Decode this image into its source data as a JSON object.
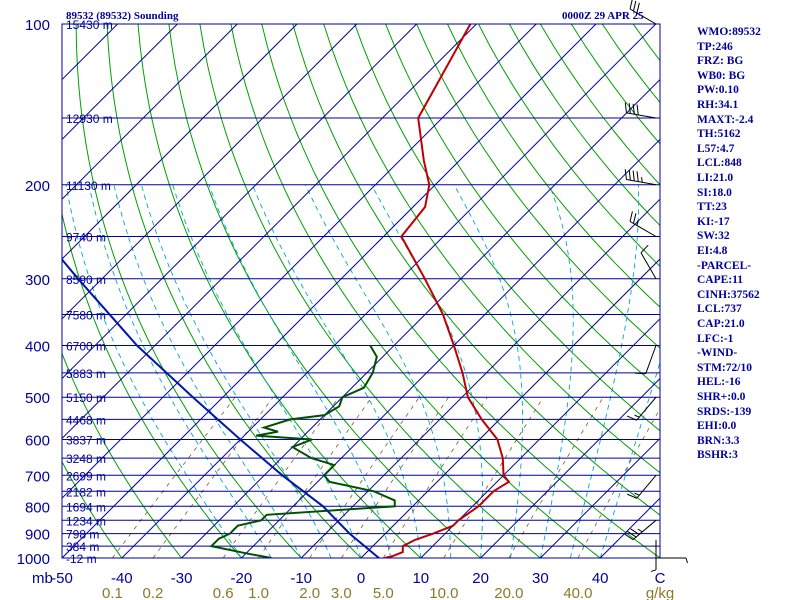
{
  "header": {
    "station": "89532 (89532) Sounding",
    "time": "0000Z 29 APR 25"
  },
  "stats": [
    "WMO:89532",
    "TP:246",
    "FRZ: BG",
    "WB0: BG",
    "PW:0.10",
    "RH:34.1",
    "MAXT:-2.4",
    "TH:5162",
    "L57:4.7",
    "LCL:848",
    "LI:21.0",
    "SI:18.0",
    "TT:23",
    "KI:-17",
    "SW:32",
    "EI:4.8",
    "-PARCEL-",
    "CAPE:11",
    "CINH:37562",
    "LCL:737",
    "CAP:21.0",
    "LFC:-1",
    "-WIND-",
    "STM:72/10",
    "HEL:-16",
    "SHR+:0.0",
    "SRDS:-139",
    "EHI:0.0",
    "BRN:3.3",
    "BSHR:3"
  ],
  "colors": {
    "isobar": "#00009c",
    "isotherm": "#00009c",
    "dry_adiabat": "#00a000",
    "moist_adiabat": "#00a8c8",
    "mixing_ratio": "#806020",
    "temperature": "#c00000",
    "dewpoint": "#005000",
    "parcel": "#0018a8",
    "axis_text": "#00009c",
    "mixing_text": "#8a7a28"
  },
  "chart_data": {
    "type": "skew-t log-p sounding",
    "x_axis": {
      "label": "mb",
      "ticks": [
        -50,
        -40,
        -30,
        -20,
        -10,
        0,
        10,
        20,
        30,
        40
      ],
      "last_tick": "C",
      "range": [
        -50,
        50
      ]
    },
    "y_axis": {
      "ticks": [
        100,
        200,
        300,
        400,
        500,
        600,
        700,
        800,
        900,
        1000
      ],
      "range": [
        1000,
        100
      ],
      "scale": "log"
    },
    "mixing_ratio_axis": {
      "ticks": [
        "0.1",
        "0.2",
        "0.6",
        "1.0",
        "2.0",
        "3.0",
        "5.0",
        "10.0",
        "20.0",
        "40.0"
      ],
      "unit": "g/kg"
    },
    "heights": [
      {
        "p": 100,
        "label": "15430 m"
      },
      {
        "p": 150,
        "label": "12930 m"
      },
      {
        "p": 200,
        "label": "11130 m"
      },
      {
        "p": 250,
        "label": "9740 m"
      },
      {
        "p": 300,
        "label": "8590 m"
      },
      {
        "p": 350,
        "label": "7580 m"
      },
      {
        "p": 400,
        "label": "6700 m"
      },
      {
        "p": 450,
        "label": "5883 m"
      },
      {
        "p": 500,
        "label": "5150 m"
      },
      {
        "p": 550,
        "label": "4468 m"
      },
      {
        "p": 600,
        "label": "3837 m"
      },
      {
        "p": 650,
        "label": "3248 m"
      },
      {
        "p": 700,
        "label": "2699 m"
      },
      {
        "p": 750,
        "label": "2182 m"
      },
      {
        "p": 800,
        "label": "1694 m"
      },
      {
        "p": 850,
        "label": "1234 m"
      },
      {
        "p": 900,
        "label": "798 m"
      },
      {
        "p": 950,
        "label": "384 m"
      },
      {
        "p": 1000,
        "label": "-12 m"
      }
    ],
    "series": [
      {
        "name": "temperature",
        "points": [
          [
            1000,
            4
          ],
          [
            992,
            5
          ],
          [
            975,
            6
          ],
          [
            950,
            5
          ],
          [
            925,
            6
          ],
          [
            900,
            8
          ],
          [
            870,
            10
          ],
          [
            850,
            10
          ],
          [
            800,
            11
          ],
          [
            780,
            11
          ],
          [
            750,
            11
          ],
          [
            720,
            12
          ],
          [
            700,
            10
          ],
          [
            650,
            7
          ],
          [
            600,
            3
          ],
          [
            550,
            -3
          ],
          [
            500,
            -9
          ],
          [
            450,
            -14
          ],
          [
            400,
            -20
          ],
          [
            350,
            -27
          ],
          [
            300,
            -36
          ],
          [
            250,
            -47
          ],
          [
            220,
            -48
          ],
          [
            200,
            -51
          ],
          [
            180,
            -56
          ],
          [
            150,
            -64
          ],
          [
            100,
            -71
          ]
        ]
      },
      {
        "name": "dewpoint",
        "points": [
          [
            1000,
            -15
          ],
          [
            980,
            -20
          ],
          [
            950,
            -27
          ],
          [
            920,
            -27
          ],
          [
            900,
            -26
          ],
          [
            870,
            -26
          ],
          [
            850,
            -23
          ],
          [
            830,
            -23
          ],
          [
            800,
            -3
          ],
          [
            780,
            -4
          ],
          [
            750,
            -9
          ],
          [
            720,
            -18
          ],
          [
            700,
            -20
          ],
          [
            670,
            -20
          ],
          [
            650,
            -25
          ],
          [
            620,
            -30
          ],
          [
            600,
            -28
          ],
          [
            590,
            -38
          ],
          [
            580,
            -35
          ],
          [
            570,
            -38
          ],
          [
            550,
            -35
          ],
          [
            540,
            -30
          ],
          [
            520,
            -29
          ],
          [
            500,
            -30
          ],
          [
            480,
            -28
          ],
          [
            450,
            -29
          ],
          [
            420,
            -31
          ],
          [
            400,
            -34
          ]
        ]
      },
      {
        "name": "parcel",
        "points": [
          [
            1000,
            3
          ],
          [
            900,
            -6
          ],
          [
            800,
            -15
          ],
          [
            700,
            -27
          ],
          [
            600,
            -40
          ],
          [
            500,
            -55
          ],
          [
            400,
            -73
          ],
          [
            300,
            -94
          ],
          [
            250,
            -107
          ],
          [
            200,
            -121
          ],
          [
            150,
            -138
          ],
          [
            120,
            -151
          ]
        ]
      }
    ],
    "winds": [
      {
        "p": 100,
        "dir": 300,
        "speed": 30
      },
      {
        "p": 150,
        "dir": 280,
        "speed": 40
      },
      {
        "p": 200,
        "dir": 280,
        "speed": 45
      },
      {
        "p": 250,
        "dir": 300,
        "speed": 25
      },
      {
        "p": 300,
        "dir": 330,
        "speed": 10
      },
      {
        "p": 400,
        "dir": 200,
        "speed": 10
      },
      {
        "p": 500,
        "dir": 220,
        "speed": 15
      },
      {
        "p": 700,
        "dir": 220,
        "speed": 15
      },
      {
        "p": 850,
        "dir": 230,
        "speed": 35
      },
      {
        "p": 925,
        "dir": 180,
        "speed": 5
      },
      {
        "p": 1000,
        "dir": 90,
        "speed": 5
      }
    ]
  }
}
